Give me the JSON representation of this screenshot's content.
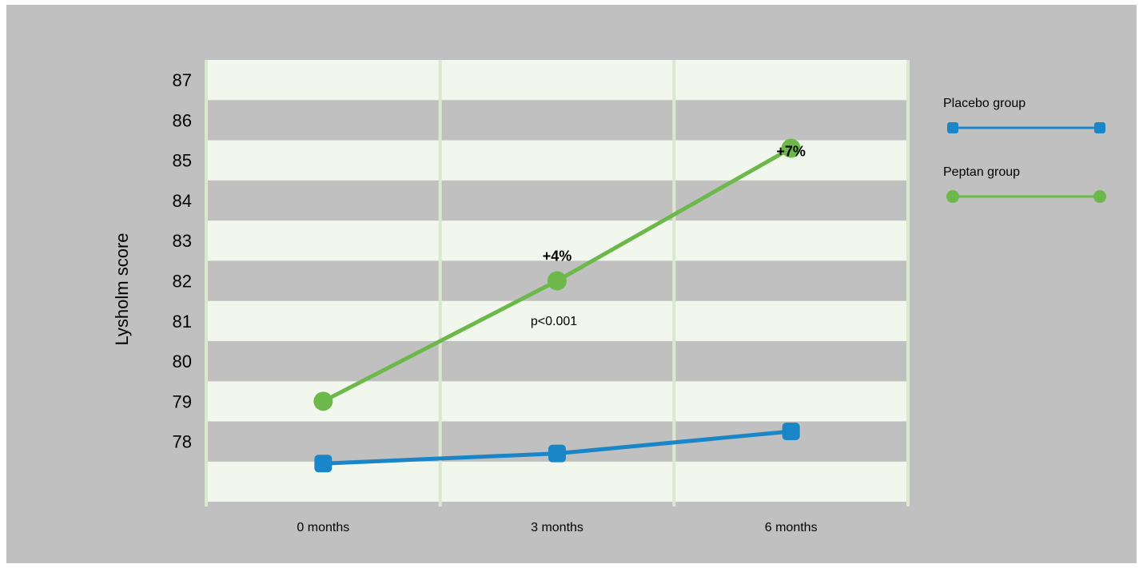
{
  "chart_data": {
    "type": "line",
    "title": "",
    "ylabel": "Lysholm score",
    "xlabel": "",
    "categories": [
      "0 months",
      "3 months",
      "6 months"
    ],
    "y_ticks": [
      78,
      79,
      80,
      81,
      82,
      83,
      84,
      85,
      86,
      87
    ],
    "ylim": [
      76.5,
      87.5
    ],
    "grid": "alternating horizontal bands, vertical category lines",
    "legend_position": "right",
    "series": [
      {
        "name": "Placebo group",
        "values": [
          77.45,
          77.7,
          78.25
        ],
        "color": "#1a86c7",
        "marker": "square"
      },
      {
        "name": "Peptan group",
        "values": [
          79.0,
          82.0,
          85.3
        ],
        "color": "#6cb84a",
        "marker": "circle"
      }
    ],
    "annotations": [
      {
        "text": "+4%",
        "category": "3 months",
        "y": 82.5,
        "bold": true
      },
      {
        "text": "+7%",
        "category": "6 months",
        "y": 85.1,
        "bold": true
      },
      {
        "text": "p<0.001",
        "category": "3 months",
        "y": 80.9,
        "bold": false
      }
    ]
  }
}
